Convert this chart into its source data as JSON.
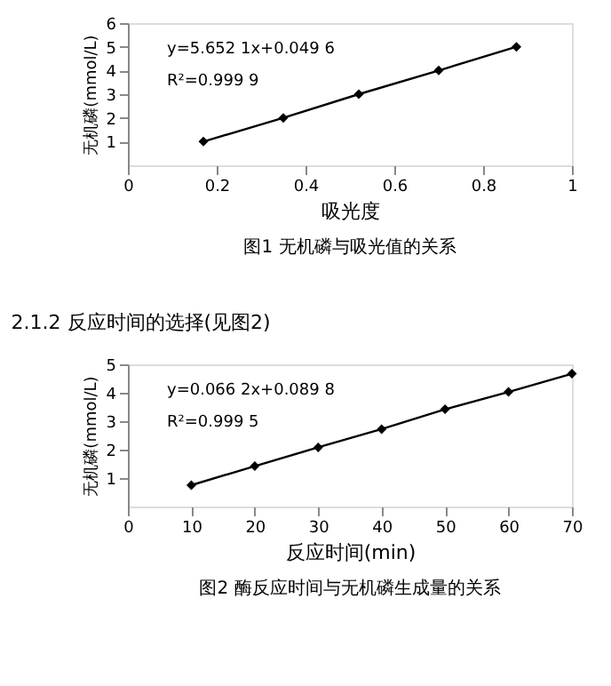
{
  "chart_data": [
    {
      "type": "line",
      "xlabel": "吸光度",
      "ylabel": "无机磷(mmol/L)",
      "x": [
        0.17,
        0.35,
        0.52,
        0.7,
        0.875
      ],
      "series": [
        {
          "color": "#000000",
          "values": [
            1,
            2,
            3,
            4,
            5
          ]
        }
      ],
      "xlim": [
        0,
        1
      ],
      "xticks": [
        0,
        0.2,
        0.4,
        0.6,
        0.8,
        1
      ],
      "ylim": [
        0,
        6
      ],
      "yticks": [
        1,
        2,
        3,
        4,
        5,
        6
      ],
      "marker": "diamond",
      "line_style": "solid",
      "grid": false,
      "annotations": [
        "y=5.652 1x+0.049 6",
        "R²=0.999 9",
        "图1  无机磷与吸光值的关系"
      ]
    },
    {
      "type": "line",
      "title": "2.1.2  反应时间的选择(见图2)",
      "xlabel": "反应时间(min)",
      "ylabel": "无机磷(mmol/L)",
      "x": [
        10,
        20,
        30,
        40,
        50,
        60,
        70
      ],
      "series": [
        {
          "color": "#000000",
          "values": [
            0.75,
            1.42,
            2.08,
            2.72,
            3.42,
            4.03,
            4.67
          ]
        }
      ],
      "xlim": [
        0,
        70
      ],
      "xticks": [
        0,
        10,
        20,
        30,
        40,
        50,
        60,
        70
      ],
      "ylim": [
        0,
        5
      ],
      "yticks": [
        1,
        2,
        3,
        4,
        5
      ],
      "marker": "diamond",
      "line_style": "solid",
      "grid": false,
      "annotations": [
        "y=0.066 2x+0.089 8",
        "R²=0.999 5",
        "图2  酶反应时间与无机磷生成量的关系"
      ]
    }
  ]
}
